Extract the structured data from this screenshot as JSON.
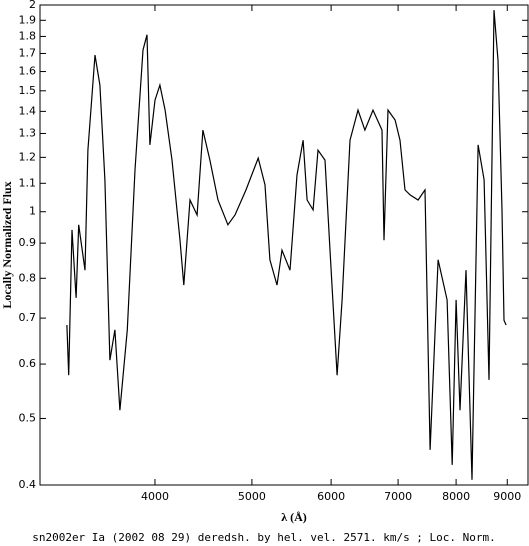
{
  "chart_data": {
    "type": "line",
    "caption": "sn2002er Ia (2002 08 29) deredsh. by hel. vel.  2571. km/s ;  Loc. Norm.",
    "xlabel": "λ (Å)",
    "ylabel": "Locally Normalized Flux",
    "xscale": "log",
    "yscale": "log",
    "xlim": [
      3070,
      9440
    ],
    "ylim": [
      0.4,
      2
    ],
    "xticks": [
      4000,
      5000,
      6000,
      7000,
      8000,
      9000
    ],
    "yticks": [
      0.4,
      0.5,
      0.6,
      0.7,
      0.8,
      0.9,
      1,
      1.1,
      1.2,
      1.3,
      1.4,
      1.5,
      1.6,
      1.7,
      1.8,
      1.9,
      2
    ],
    "x": [
      3266,
      3280,
      3305,
      3336,
      3356,
      3405,
      3428,
      3484,
      3524,
      3565,
      3606,
      3648,
      3690,
      3753,
      3820,
      3891,
      3927,
      3954,
      4000,
      4046,
      4094,
      4160,
      4237,
      4275,
      4336,
      4407,
      4467,
      4539,
      4625,
      4731,
      4809,
      4933,
      5073,
      5153,
      5211,
      5297,
      5359,
      5458,
      5547,
      5625,
      5677,
      5756,
      5821,
      5916,
      5985,
      6083,
      6153,
      6267,
      6383,
      6486,
      6607,
      6746,
      6777,
      6839,
      6952,
      7031,
      7113,
      7196,
      7330,
      7448,
      7536,
      7676,
      7836,
      7928,
      8000,
      8073,
      8185,
      8299,
      8415,
      8532,
      8630,
      8730,
      8811,
      8892,
      8933,
      8975
    ],
    "series": [
      {
        "name": "sn2002er",
        "color": "#000000",
        "values": [
          0.684,
          0.578,
          0.941,
          0.749,
          0.957,
          0.822,
          1.229,
          1.691,
          1.529,
          1.113,
          0.608,
          0.673,
          0.514,
          0.673,
          1.15,
          1.72,
          1.81,
          1.251,
          1.454,
          1.529,
          1.406,
          1.189,
          0.909,
          0.782,
          1.04,
          0.989,
          1.315,
          1.189,
          1.04,
          0.957,
          0.989,
          1.076,
          1.197,
          1.094,
          0.851,
          0.782,
          0.879,
          0.822,
          1.131,
          1.271,
          1.04,
          1.006,
          1.229,
          1.189,
          0.879,
          0.578,
          0.744,
          1.271,
          1.406,
          1.315,
          1.406,
          1.315,
          0.909,
          1.406,
          1.36,
          1.271,
          1.076,
          1.058,
          1.04,
          1.076,
          0.45,
          0.851,
          0.744,
          0.428,
          0.744,
          0.514,
          0.822,
          0.407,
          1.251,
          1.113,
          0.569,
          1.966,
          1.662,
          1.006,
          0.695,
          0.684
        ]
      }
    ]
  }
}
